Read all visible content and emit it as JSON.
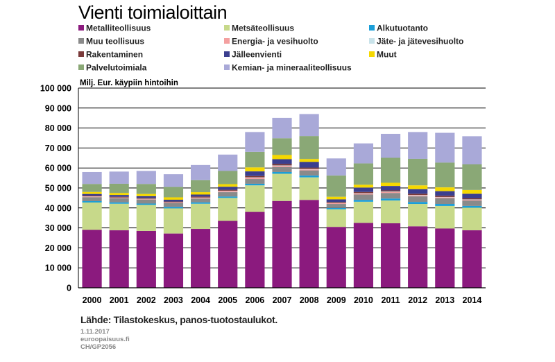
{
  "chart_data": {
    "type": "bar",
    "stacked": true,
    "title": "Vienti toimialoittain",
    "ylabel": "Milj. Eur. käypiin hintoihin",
    "xlabel": "",
    "ylim": [
      0,
      100000
    ],
    "yticks": [
      "0",
      "10 000",
      "20 000",
      "30 000",
      "40 000",
      "50 000",
      "60 000",
      "70 000",
      "80 000",
      "90 000",
      "100 000"
    ],
    "categories": [
      "2000",
      "2001",
      "2002",
      "2003",
      "2004",
      "2005",
      "2006",
      "2007",
      "2008",
      "2009",
      "2010",
      "2011",
      "2012",
      "2013",
      "2014"
    ],
    "series": [
      {
        "name": "Metalliteollisuus",
        "color": "#8b1a7e",
        "values": [
          29000,
          28800,
          28500,
          27200,
          29500,
          33500,
          38000,
          43500,
          44000,
          30500,
          32500,
          32300,
          30800,
          29700,
          28800
        ]
      },
      {
        "name": "Metsäteollisuus",
        "color": "#c7d98a",
        "values": [
          13700,
          13300,
          13000,
          12600,
          12600,
          11500,
          13300,
          13600,
          11300,
          8800,
          10600,
          11400,
          11200,
          11300,
          11300
        ]
      },
      {
        "name": "Alkutuotanto",
        "color": "#1a9ed8",
        "values": [
          700,
          700,
          700,
          700,
          700,
          700,
          800,
          900,
          900,
          700,
          900,
          1000,
          1000,
          1000,
          900
        ]
      },
      {
        "name": "Muu teollisuus",
        "color": "#8a8a8a",
        "values": [
          2000,
          2000,
          2000,
          1900,
          1900,
          2200,
          2400,
          2500,
          2600,
          2000,
          2700,
          2800,
          2800,
          2800,
          2700
        ]
      },
      {
        "name": "Energia- ja vesihuolto",
        "color": "#f4a0a0",
        "values": [
          300,
          300,
          300,
          300,
          400,
          500,
          600,
          600,
          500,
          400,
          500,
          500,
          500,
          500,
          400
        ]
      },
      {
        "name": "Jäte- ja jätevesihuolto",
        "color": "#c9e3ea",
        "values": [
          100,
          100,
          100,
          100,
          100,
          200,
          200,
          200,
          200,
          100,
          200,
          200,
          200,
          200,
          200
        ]
      },
      {
        "name": "Rakentaminen",
        "color": "#7a3a3a",
        "values": [
          400,
          400,
          400,
          400,
          500,
          500,
          700,
          700,
          700,
          500,
          600,
          600,
          600,
          600,
          500
        ]
      },
      {
        "name": "Jälleenvienti",
        "color": "#3b3f8f",
        "values": [
          800,
          900,
          900,
          900,
          1000,
          1500,
          2300,
          2400,
          2800,
          1300,
          2200,
          2200,
          2300,
          2300,
          2300
        ]
      },
      {
        "name": "Muut",
        "color": "#f5d800",
        "values": [
          1000,
          1000,
          1100,
          1200,
          1200,
          1300,
          2000,
          2100,
          1500,
          1300,
          1400,
          1600,
          1900,
          1900,
          1900
        ]
      },
      {
        "name": "Palvelutoimiala",
        "color": "#8aa876",
        "values": [
          4000,
          4600,
          5000,
          5200,
          6000,
          6600,
          7800,
          8400,
          11500,
          10600,
          10700,
          12500,
          13300,
          12400,
          12800
        ]
      },
      {
        "name": "Kemian- ja mineraaliteollisuus",
        "color": "#a9a9d8",
        "values": [
          6000,
          6100,
          6500,
          6400,
          7600,
          8200,
          9900,
          10200,
          11000,
          8600,
          10000,
          12000,
          13400,
          14900,
          14100
        ]
      }
    ],
    "legend_position": "top",
    "grid": true
  },
  "footer": {
    "source": "Lähde: Tilastokeskus, panos-tuotostaulukot.",
    "date": "1.11.2017",
    "site": "euroopaisuus.fi",
    "code": "CH/GP2056"
  }
}
